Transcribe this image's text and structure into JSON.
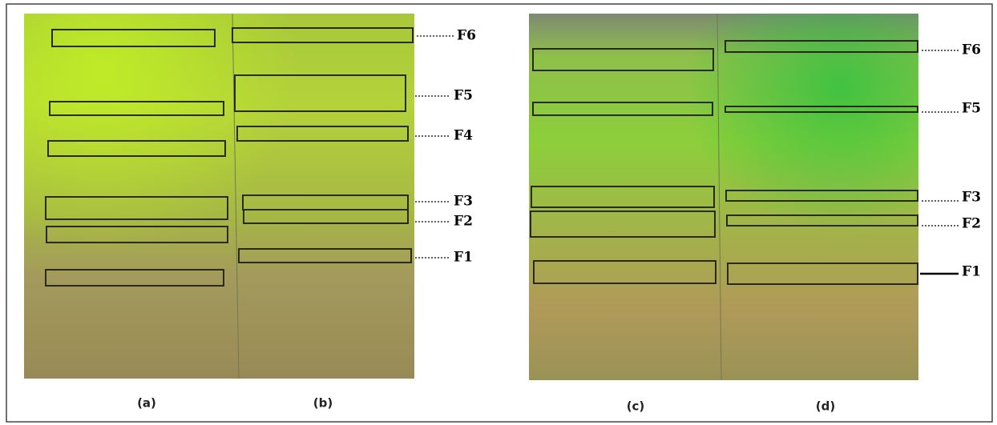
{
  "panels": [
    {
      "fractions": [
        "F6",
        "F5",
        "F4",
        "F3",
        "F2",
        "F1"
      ]
    },
    {
      "fractions": [
        "F6",
        "F5",
        "F3",
        "F2",
        "F1"
      ]
    }
  ],
  "lanes": [
    "(a)",
    "(b)",
    "(c)",
    "(d)"
  ]
}
